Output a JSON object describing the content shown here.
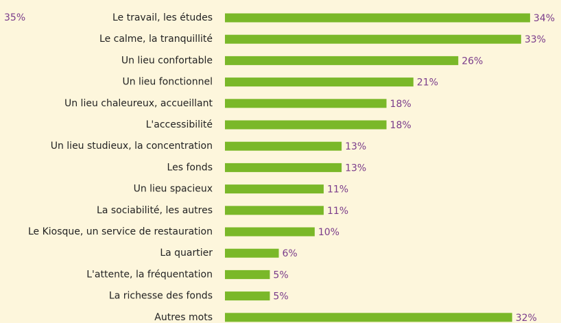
{
  "chart_data": {
    "type": "bar",
    "orientation": "horizontal",
    "annotation": "35%",
    "categories": [
      "Le travail, les études",
      "Le calme, la tranquillité",
      "Un lieu confortable",
      "Un lieu fonctionnel",
      "Un lieu chaleureux, accueillant",
      "L'accessibilité",
      "Un lieu studieux, la concentration",
      "Les fonds",
      "Un lieu spacieux",
      "La sociabilité, les autres",
      "Le Kiosque, un service de restauration",
      "La quartier",
      "L'attente, la fréquentation",
      "La richesse des fonds",
      "Autres mots"
    ],
    "values": [
      34,
      33,
      26,
      21,
      18,
      18,
      13,
      13,
      11,
      11,
      10,
      6,
      5,
      5,
      32
    ],
    "value_labels": [
      "34%",
      "33%",
      "26%",
      "21%",
      "18%",
      "18%",
      "13%",
      "13%",
      "11%",
      "11%",
      "10%",
      "6%",
      "5%",
      "5%",
      "32%"
    ],
    "color": "#7ab829",
    "xlim": [
      0,
      35
    ]
  }
}
